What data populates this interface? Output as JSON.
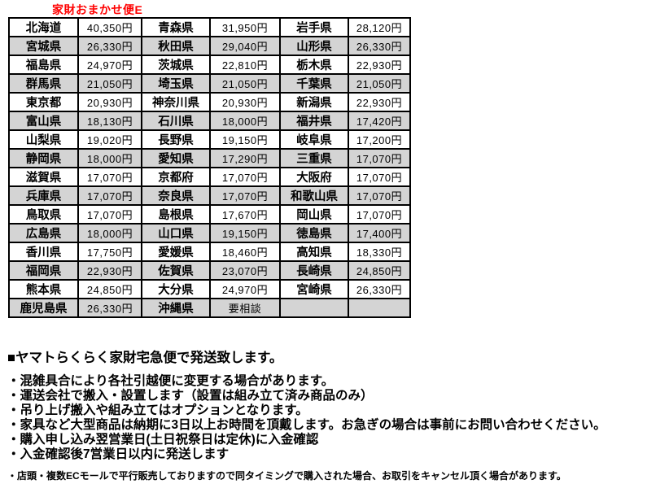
{
  "page_title": "家財おまかせ便E",
  "accent_color": "#ff0000",
  "row_alt_color": "#d4d4d4",
  "table": {
    "columns_per_row": [
      "prefecture",
      "fee",
      "prefecture",
      "fee",
      "prefecture",
      "fee"
    ],
    "rows": [
      [
        "北海道",
        "40,350円",
        "青森県",
        "31,950円",
        "岩手県",
        "28,120円"
      ],
      [
        "宮城県",
        "26,330円",
        "秋田県",
        "29,040円",
        "山形県",
        "26,330円"
      ],
      [
        "福島県",
        "24,970円",
        "茨城県",
        "22,810円",
        "栃木県",
        "22,930円"
      ],
      [
        "群馬県",
        "21,050円",
        "埼玉県",
        "21,050円",
        "千葉県",
        "21,050円"
      ],
      [
        "東京都",
        "20,930円",
        "神奈川県",
        "20,930円",
        "新潟県",
        "22,930円"
      ],
      [
        "富山県",
        "18,130円",
        "石川県",
        "18,000円",
        "福井県",
        "17,420円"
      ],
      [
        "山梨県",
        "19,020円",
        "長野県",
        "19,150円",
        "岐阜県",
        "17,200円"
      ],
      [
        "静岡県",
        "18,000円",
        "愛知県",
        "17,290円",
        "三重県",
        "17,070円"
      ],
      [
        "滋賀県",
        "17,070円",
        "京都府",
        "17,070円",
        "大阪府",
        "17,070円"
      ],
      [
        "兵庫県",
        "17,070円",
        "奈良県",
        "17,070円",
        "和歌山県",
        "17,070円"
      ],
      [
        "鳥取県",
        "17,070円",
        "島根県",
        "17,670円",
        "岡山県",
        "17,070円"
      ],
      [
        "広島県",
        "18,000円",
        "山口県",
        "19,150円",
        "徳島県",
        "17,400円"
      ],
      [
        "香川県",
        "17,750円",
        "愛媛県",
        "18,460円",
        "高知県",
        "18,330円"
      ],
      [
        "福岡県",
        "22,930円",
        "佐賀県",
        "23,070円",
        "長崎県",
        "24,850円"
      ],
      [
        "熊本県",
        "24,850円",
        "大分県",
        "24,970円",
        "宮崎県",
        "26,330円"
      ],
      [
        "鹿児島県",
        "26,330円",
        "沖縄県",
        "要相談",
        "",
        ""
      ]
    ]
  },
  "notes": {
    "heading": "■ヤマトらくらく家財宅急便で発送致します。",
    "bullets": [
      "・混雑具合により各社引越便に変更する場合があります。",
      "・運送会社で搬入・設置します（設置は組み立て済み商品のみ）",
      "・吊り上げ搬入や組み立てはオプションとなります。",
      "・家具など大型商品は納期に3日以上お時間を頂戴します。お急ぎの場合は事前にお問い合わせください。",
      "・購入申し込み翌営業日(土日祝祭日は定休)に入金確認",
      "・入金確認後7営業日以内に発送します"
    ],
    "footnote": "・店頭・複数ECモールで平行販売しておりますので同タイミングで購入された場合、お取引をキャンセル頂く場合があります。"
  }
}
